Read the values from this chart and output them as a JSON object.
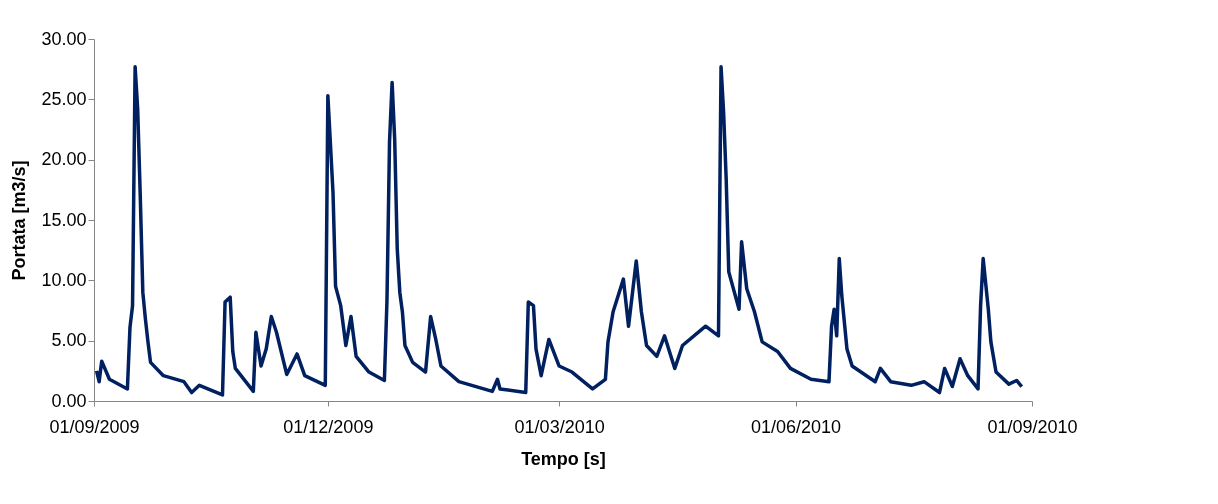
{
  "chart_data": {
    "type": "line",
    "xlabel": "Tempo [s]",
    "ylabel": "Portata [m3/s]",
    "x": [
      "2009-09-02",
      "2009-09-03",
      "2009-09-04",
      "2009-09-07",
      "2009-09-14",
      "2009-09-15",
      "2009-09-16",
      "2009-09-17",
      "2009-09-18",
      "2009-09-19",
      "2009-09-20",
      "2009-09-21",
      "2009-09-22",
      "2009-09-23",
      "2009-09-28",
      "2009-10-06",
      "2009-10-09",
      "2009-10-12",
      "2009-10-21",
      "2009-10-22",
      "2009-10-24",
      "2009-10-25",
      "2009-10-26",
      "2009-11-02",
      "2009-11-03",
      "2009-11-05",
      "2009-11-07",
      "2009-11-09",
      "2009-11-11",
      "2009-11-15",
      "2009-11-19",
      "2009-11-22",
      "2009-11-30",
      "2009-12-01",
      "2009-12-03",
      "2009-12-04",
      "2009-12-06",
      "2009-12-08",
      "2009-12-10",
      "2009-12-12",
      "2009-12-17",
      "2009-12-23",
      "2009-12-24",
      "2009-12-25",
      "2009-12-26",
      "2009-12-27",
      "2009-12-28",
      "2009-12-29",
      "2009-12-30",
      "2009-12-31",
      "2010-01-03",
      "2010-01-08",
      "2010-01-10",
      "2010-01-12",
      "2010-01-14",
      "2010-01-21",
      "2010-02-03",
      "2010-02-05",
      "2010-02-06",
      "2010-02-16",
      "2010-02-17",
      "2010-02-19",
      "2010-02-20",
      "2010-02-22",
      "2010-02-25",
      "2010-03-01",
      "2010-03-06",
      "2010-03-14",
      "2010-03-19",
      "2010-03-20",
      "2010-03-22",
      "2010-03-26",
      "2010-03-28",
      "2010-03-31",
      "2010-04-02",
      "2010-04-04",
      "2010-04-08",
      "2010-04-11",
      "2010-04-15",
      "2010-04-18",
      "2010-04-27",
      "2010-05-02",
      "2010-05-03",
      "2010-05-04",
      "2010-05-05",
      "2010-05-06",
      "2010-05-10",
      "2010-05-11",
      "2010-05-13",
      "2010-05-16",
      "2010-05-19",
      "2010-05-25",
      "2010-05-30",
      "2010-06-07",
      "2010-06-14",
      "2010-06-15",
      "2010-06-16",
      "2010-06-17",
      "2010-06-18",
      "2010-06-19",
      "2010-06-21",
      "2010-06-23",
      "2010-07-02",
      "2010-07-04",
      "2010-07-08",
      "2010-07-16",
      "2010-07-21",
      "2010-07-27",
      "2010-07-29",
      "2010-08-01",
      "2010-08-04",
      "2010-08-07",
      "2010-08-11",
      "2010-08-12",
      "2010-08-13",
      "2010-08-15",
      "2010-08-16",
      "2010-08-18",
      "2010-08-23",
      "2010-08-26",
      "2010-08-28"
    ],
    "series": [
      {
        "color": "#002060",
        "values": [
          2.5,
          1.6,
          3.3,
          1.8,
          1.0,
          6.1,
          7.9,
          27.7,
          24.2,
          17.0,
          9.0,
          6.8,
          4.9,
          3.2,
          2.1,
          1.6,
          0.7,
          1.3,
          0.5,
          8.2,
          8.6,
          4.1,
          2.7,
          0.8,
          5.7,
          2.9,
          4.3,
          7.0,
          5.7,
          2.2,
          3.9,
          2.1,
          1.3,
          25.3,
          17.3,
          9.5,
          7.9,
          4.6,
          7.0,
          3.7,
          2.4,
          1.7,
          8.3,
          21.5,
          26.4,
          21.7,
          12.6,
          9.0,
          7.4,
          4.6,
          3.2,
          2.4,
          7.0,
          5.1,
          2.9,
          1.6,
          0.8,
          1.8,
          1.0,
          0.7,
          8.2,
          7.9,
          4.3,
          2.1,
          5.1,
          2.9,
          2.4,
          1.0,
          1.8,
          4.9,
          7.4,
          10.1,
          6.2,
          11.6,
          7.4,
          4.6,
          3.7,
          5.4,
          2.7,
          4.6,
          6.2,
          5.4,
          27.7,
          23.9,
          18.4,
          10.7,
          7.6,
          13.2,
          9.3,
          7.4,
          4.9,
          4.1,
          2.7,
          1.8,
          1.6,
          6.2,
          7.6,
          5.4,
          11.8,
          8.7,
          4.3,
          2.9,
          1.6,
          2.7,
          1.6,
          1.3,
          1.6,
          0.7,
          2.7,
          1.2,
          3.5,
          2.1,
          1.0,
          7.9,
          11.8,
          7.6,
          4.9,
          2.4,
          1.4,
          1.7,
          1.2
        ]
      }
    ],
    "xlim": [
      "2009-09-01",
      "2010-09-01"
    ],
    "xticks": [
      {
        "value": "2009-09-01",
        "label": "01/09/2009"
      },
      {
        "value": "2009-12-01",
        "label": "01/12/2009"
      },
      {
        "value": "2010-03-01",
        "label": "01/03/2010"
      },
      {
        "value": "2010-06-01",
        "label": "01/06/2010"
      },
      {
        "value": "2010-09-01",
        "label": "01/09/2010"
      }
    ],
    "ylim": [
      0,
      30
    ],
    "yticks": [
      {
        "value": 0,
        "label": "0.00"
      },
      {
        "value": 5,
        "label": "5.00"
      },
      {
        "value": 10,
        "label": "10.00"
      },
      {
        "value": 15,
        "label": "15.00"
      },
      {
        "value": 20,
        "label": "20.00"
      },
      {
        "value": 25,
        "label": "25.00"
      },
      {
        "value": 30,
        "label": "30.00"
      }
    ],
    "grid": false,
    "legend": false,
    "line_style": "solid",
    "marker": "none"
  }
}
